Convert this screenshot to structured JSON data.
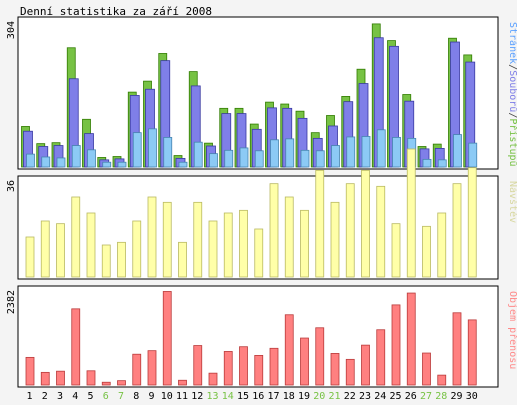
{
  "title": "Denní statistika za září 2008",
  "chart_data": [
    {
      "type": "bar",
      "name": "top",
      "ymax": 304,
      "ylabel_parts": [
        {
          "text": "Stránek",
          "color": "#5aa0ff"
        },
        {
          "text": "/",
          "color": "#444444"
        },
        {
          "text": "Souborů",
          "color": "#7f7fe8"
        },
        {
          "text": "/",
          "color": "#444444"
        },
        {
          "text": "Přístupů",
          "color": "#77c244"
        }
      ],
      "categories": [
        "1",
        "2",
        "3",
        "4",
        "5",
        "6",
        "7",
        "8",
        "9",
        "10",
        "11",
        "12",
        "13",
        "14",
        "15",
        "16",
        "17",
        "18",
        "19",
        "20",
        "21",
        "22",
        "23",
        "24",
        "25",
        "26",
        "27",
        "28",
        "29",
        "30"
      ],
      "series": [
        {
          "name": "Přístupů",
          "color": "#77c244",
          "values": [
            85,
            49,
            51,
            250,
            100,
            20,
            22,
            157,
            180,
            238,
            24,
            200,
            50,
            123,
            123,
            90,
            136,
            132,
            117,
            72,
            108,
            148,
            205,
            300,
            265,
            152,
            43,
            48,
            270,
            235
          ]
        },
        {
          "name": "Souborů",
          "color": "#7f7fe8",
          "values": [
            75,
            43,
            45,
            185,
            70,
            15,
            17,
            150,
            163,
            223,
            18,
            170,
            44,
            112,
            112,
            79,
            124,
            123,
            102,
            60,
            86,
            137,
            175,
            271,
            253,
            138,
            38,
            39,
            262,
            220
          ]
        },
        {
          "name": "Stránek",
          "color": "#8ccaf5",
          "values": [
            27,
            21,
            19,
            45,
            36,
            10,
            10,
            72,
            80,
            62,
            10,
            52,
            28,
            35,
            40,
            34,
            57,
            59,
            35,
            34,
            45,
            63,
            64,
            78,
            62,
            60,
            16,
            15,
            68,
            50
          ]
        }
      ]
    },
    {
      "type": "bar",
      "name": "middle",
      "ymax": 36,
      "ylabel_parts": [
        {
          "text": "Návštěv",
          "color": "#d8d8a0"
        }
      ],
      "categories": [
        "1",
        "2",
        "3",
        "4",
        "5",
        "6",
        "7",
        "8",
        "9",
        "10",
        "11",
        "12",
        "13",
        "14",
        "15",
        "16",
        "17",
        "18",
        "19",
        "20",
        "21",
        "22",
        "23",
        "24",
        "25",
        "26",
        "27",
        "28",
        "29",
        "30"
      ],
      "series": [
        {
          "name": "Návštěv",
          "color": "#ffffa8",
          "values": [
            15,
            21,
            20,
            30,
            24,
            12,
            13,
            21,
            30,
            28,
            13,
            28,
            21,
            24,
            25,
            18,
            35,
            30,
            25,
            40,
            28,
            35,
            40,
            34,
            20,
            48,
            19,
            24,
            35,
            41
          ]
        }
      ]
    },
    {
      "type": "bar",
      "name": "bottom",
      "ymax": 2382,
      "ylabel_parts": [
        {
          "text": "Objem přenosu",
          "color": "#ff8a8a"
        }
      ],
      "categories": [
        "1",
        "2",
        "3",
        "4",
        "5",
        "6",
        "7",
        "8",
        "9",
        "10",
        "11",
        "12",
        "13",
        "14",
        "15",
        "16",
        "17",
        "18",
        "19",
        "20",
        "21",
        "22",
        "23",
        "24",
        "25",
        "26",
        "27",
        "28",
        "29",
        "30"
      ],
      "series": [
        {
          "name": "Objem přenosu",
          "color": "#ff8080",
          "values": [
            700,
            320,
            350,
            1930,
            360,
            70,
            110,
            780,
            870,
            2370,
            120,
            1000,
            300,
            850,
            970,
            750,
            930,
            1780,
            1190,
            1450,
            800,
            650,
            1010,
            1400,
            2030,
            2330,
            810,
            250,
            1830,
            1650
          ]
        }
      ]
    }
  ],
  "weekend_days": [
    "6",
    "7",
    "13",
    "14",
    "20",
    "21",
    "27",
    "28"
  ],
  "colors": {
    "day_normal": "#000000",
    "day_weekend": "#77c244",
    "frame": "#000000",
    "background": "#f4f4f4",
    "panel": "#ffffff"
  }
}
